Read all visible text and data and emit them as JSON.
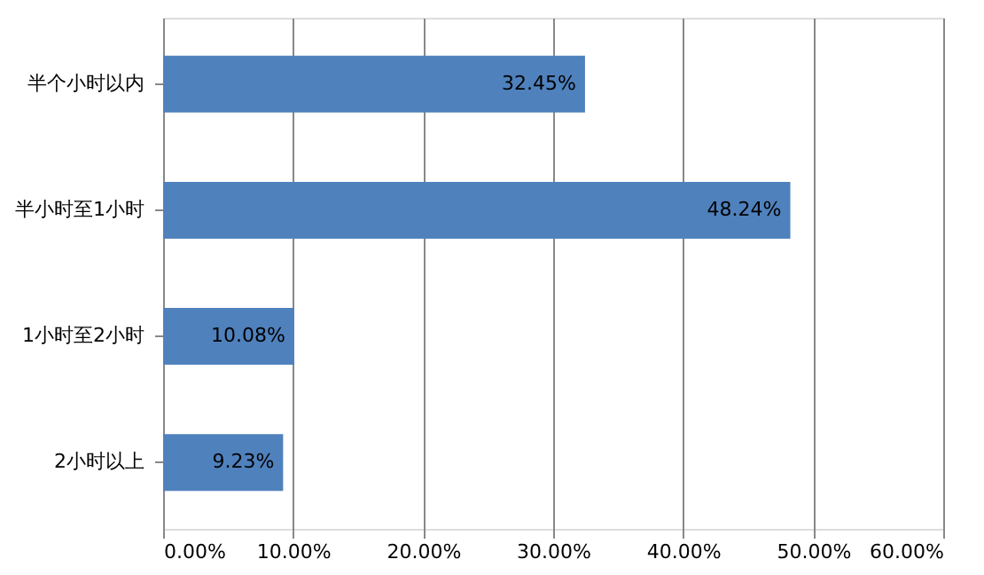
{
  "chart_data": {
    "type": "bar",
    "orientation": "horizontal",
    "categories": [
      "半个小时以内",
      "半小时至1小时",
      "1小时至2小时",
      "2小时以上"
    ],
    "values": [
      32.45,
      48.24,
      10.08,
      9.23
    ],
    "value_labels": [
      "32.45%",
      "48.24%",
      "10.08%",
      "9.23%"
    ],
    "color": "#4f81bd",
    "xlim": [
      0,
      60
    ],
    "xticks": [
      {
        "value": 0,
        "label": "0.00%"
      },
      {
        "value": 10,
        "label": "10.00%"
      },
      {
        "value": 20,
        "label": "20.00%"
      },
      {
        "value": 30,
        "label": "30.00%"
      },
      {
        "value": 40,
        "label": "40.00%"
      },
      {
        "value": 50,
        "label": "50.00%"
      },
      {
        "value": 60,
        "label": "60.00%"
      }
    ],
    "grid": "x"
  }
}
